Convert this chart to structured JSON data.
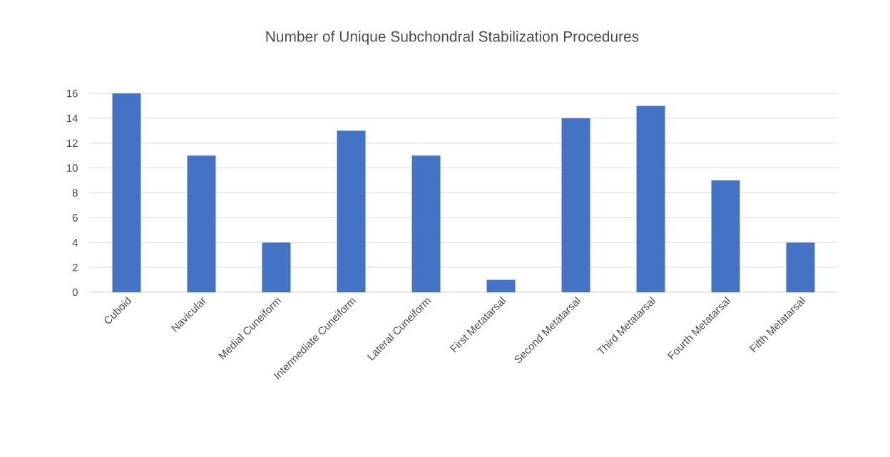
{
  "chart_data": {
    "type": "bar",
    "title": "Number of Unique Subchondral Stabilization Procedures",
    "categories": [
      "Cuboid",
      "Navicular",
      "Medial Cuneiform",
      "Intermediate Cuneiform",
      "Lateral Cuneiform",
      "First Metatarsal",
      "Second Metatarsal",
      "Third Metatarsal",
      "Fourth Metatarsal",
      "Fifth Metatarsal"
    ],
    "values": [
      16,
      11,
      4,
      13,
      11,
      1,
      14,
      15,
      9,
      4
    ],
    "color": "#4472c4",
    "ylim": [
      0,
      16
    ],
    "yticks": [
      0,
      2,
      4,
      6,
      8,
      10,
      12,
      14,
      16
    ],
    "grid": "y"
  }
}
